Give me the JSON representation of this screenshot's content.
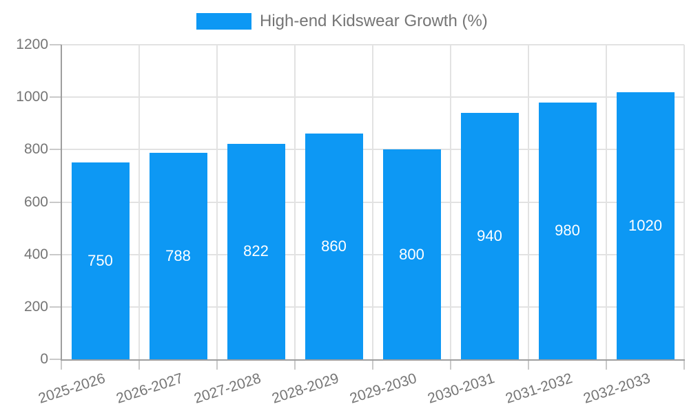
{
  "chart_data": {
    "type": "bar",
    "title": "High-end Kidswear Growth (%)",
    "legend": {
      "position": "top",
      "label": "High-end Kidswear Growth (%)"
    },
    "categories": [
      "2025-2026",
      "2026-2027",
      "2027-2028",
      "2028-2029",
      "2029-2030",
      "2030-2031",
      "2031-2032",
      "2032-2033"
    ],
    "series": [
      {
        "name": "High-end Kidswear Growth (%)",
        "values": [
          750,
          788,
          822,
          860,
          800,
          940,
          980,
          1020
        ]
      }
    ],
    "value_labels": [
      "750",
      "788",
      "822",
      "860",
      "800",
      "940",
      "980",
      "1020"
    ],
    "xlabel": "",
    "ylabel": "",
    "ylim": [
      0,
      1200
    ],
    "yticks": [
      0,
      200,
      400,
      600,
      800,
      1000,
      1200
    ],
    "ytick_labels": [
      "0",
      "200",
      "400",
      "600",
      "800",
      "1000",
      "1200"
    ],
    "grid": "horizontal and vertical light gray gridlines",
    "x_label_rotation_deg": -18,
    "colors": {
      "bar": "#0d98f4",
      "value_label": "#ffffff",
      "axis_text": "#757575",
      "axis_line": "#9e9e9e",
      "gridline": "#e2e2e2",
      "tick": "#c9c9c9",
      "background": "#ffffff"
    }
  }
}
